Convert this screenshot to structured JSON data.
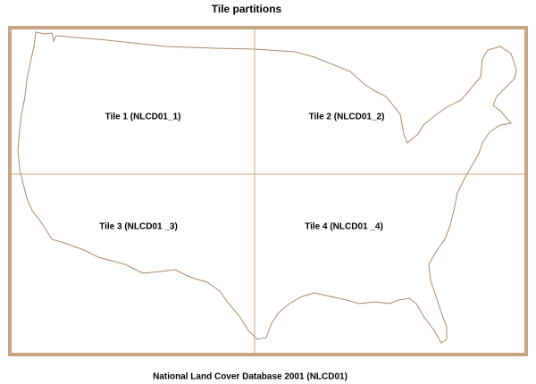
{
  "title": "Tile partitions",
  "tiles": [
    {
      "label": "Tile 1 (NLCD01_1)"
    },
    {
      "label": "Tile 2 (NLCD01_2)"
    },
    {
      "label": "Tile 3 (NLCD01 _3)"
    },
    {
      "label": "Tile 4 (NLCD01 _4)"
    }
  ],
  "caption": "National Land Cover Database 2001 (NLCD01)"
}
